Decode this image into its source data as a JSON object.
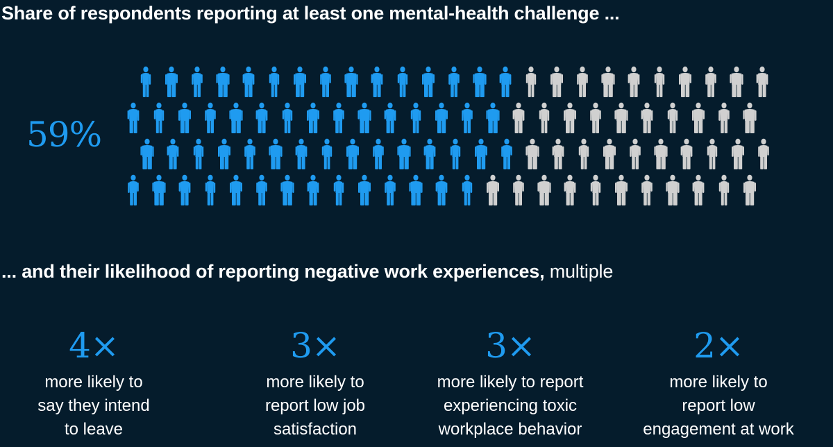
{
  "title": "Share of respondents reporting at least one mental-health challenge ...",
  "headline_value": "59%",
  "subtitle_bold": "... and their likelihood of reporting negative work experiences,",
  "subtitle_unit": " multiple",
  "colors": {
    "background": "#051c2c",
    "highlight": "#1f9bf0",
    "rest": "#d0d0d0"
  },
  "chart_data": [
    {
      "type": "icon-array",
      "total": 100,
      "highlighted": 59,
      "value_label": "59%",
      "title": "Share of respondents reporting at least one mental-health challenge ..."
    },
    {
      "type": "table",
      "title": "... and their likelihood of reporting negative work experiences, multiple",
      "items": [
        {
          "multiple": 4,
          "label": "4×",
          "lines": [
            "more likely to",
            "say they intend",
            "to leave"
          ]
        },
        {
          "multiple": 3,
          "label": "3×",
          "lines": [
            "more likely to",
            "report low job",
            "satisfaction"
          ]
        },
        {
          "multiple": 3,
          "label": "3×",
          "lines": [
            "more likely to report",
            "experiencing toxic",
            "workplace behavior"
          ]
        },
        {
          "multiple": 2,
          "label": "2×",
          "lines": [
            "more likely to",
            "report low",
            "engagement at work"
          ]
        }
      ]
    }
  ]
}
